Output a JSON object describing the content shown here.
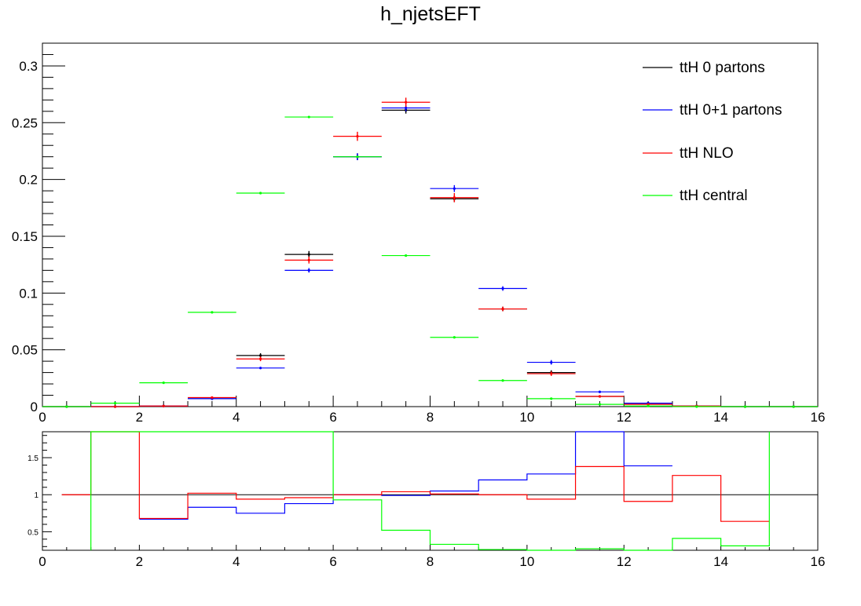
{
  "title": "h_njetsEFT",
  "chart_data": [
    {
      "type": "line",
      "subtype": "histogram-points",
      "x_bin_width": 1,
      "xlim": [
        0,
        16
      ],
      "ylim": [
        0,
        0.32
      ],
      "x_ticks": [
        "0",
        "2",
        "4",
        "6",
        "8",
        "10",
        "12",
        "14",
        "16"
      ],
      "y_ticks": [
        {
          "value": 0,
          "label": "0"
        },
        {
          "value": 0.05,
          "label": "0.05"
        },
        {
          "value": 0.1,
          "label": "0.1"
        },
        {
          "value": 0.15,
          "label": "0.15"
        },
        {
          "value": 0.2,
          "label": "0.2"
        },
        {
          "value": 0.25,
          "label": "0.25"
        },
        {
          "value": 0.3,
          "label": "0.3"
        }
      ],
      "legend_position": "top-right",
      "series": [
        {
          "name": "ttH 0 partons",
          "color": "#000000",
          "x": [
            0.5,
            1.5,
            2.5,
            3.5,
            4.5,
            5.5,
            6.5,
            7.5,
            8.5,
            9.5,
            10.5,
            11.5,
            12.5,
            13.5,
            14.5,
            15.5
          ],
          "values": [
            0,
            0,
            0.0005,
            0.007,
            0.045,
            0.134,
            0.22,
            0.261,
            0.183,
            0.086,
            0.03,
            0.009,
            0.003,
            0.0005,
            0,
            0
          ],
          "errors": [
            0,
            0,
            0.0005,
            0.001,
            0.002,
            0.003,
            0.003,
            0.003,
            0.003,
            0.002,
            0.002,
            0.001,
            0.001,
            0,
            0,
            0
          ]
        },
        {
          "name": "ttH 0+1 partons",
          "color": "#0000ff",
          "x": [
            0.5,
            1.5,
            2.5,
            3.5,
            4.5,
            5.5,
            6.5,
            7.5,
            8.5,
            9.5,
            10.5,
            11.5,
            12.5,
            13.5,
            14.5,
            15.5
          ],
          "values": [
            0,
            0,
            0.0005,
            0.007,
            0.034,
            0.12,
            0.22,
            0.263,
            0.192,
            0.104,
            0.039,
            0.013,
            0.003,
            0.0005,
            0,
            0
          ],
          "errors": [
            0,
            0,
            0.0005,
            0.001,
            0.001,
            0.002,
            0.003,
            0.003,
            0.003,
            0.002,
            0.002,
            0.001,
            0.001,
            0,
            0,
            0
          ]
        },
        {
          "name": "ttH NLO",
          "color": "#ff0000",
          "x": [
            0.5,
            1.5,
            2.5,
            3.5,
            4.5,
            5.5,
            6.5,
            7.5,
            8.5,
            9.5,
            10.5,
            11.5,
            12.5,
            13.5,
            14.5,
            15.5
          ],
          "values": [
            0,
            0,
            0.0005,
            0.008,
            0.042,
            0.129,
            0.238,
            0.268,
            0.184,
            0.086,
            0.029,
            0.009,
            0.002,
            0.0005,
            0,
            0
          ],
          "errors": [
            0,
            0,
            0.0005,
            0.001,
            0.002,
            0.003,
            0.004,
            0.004,
            0.004,
            0.002,
            0.002,
            0.001,
            0.001,
            0,
            0,
            0
          ]
        },
        {
          "name": "ttH central",
          "color": "#00ff00",
          "x": [
            0.5,
            1.5,
            2.5,
            3.5,
            4.5,
            5.5,
            6.5,
            7.5,
            8.5,
            9.5,
            10.5,
            11.5,
            12.5,
            13.5,
            14.5,
            15.5
          ],
          "values": [
            0,
            0.003,
            0.021,
            0.083,
            0.188,
            0.255,
            0.22,
            0.133,
            0.061,
            0.023,
            0.007,
            0.002,
            0.0005,
            0,
            0,
            0
          ],
          "errors": [
            0,
            0,
            0,
            0,
            0,
            0,
            0,
            0,
            0,
            0,
            0,
            0,
            0,
            0,
            0,
            0
          ]
        }
      ]
    },
    {
      "type": "line",
      "subtype": "ratio-step",
      "xlim": [
        0,
        16
      ],
      "ylim": [
        0.25,
        1.85
      ],
      "x_ticks": [
        "0",
        "2",
        "4",
        "6",
        "8",
        "10",
        "12",
        "14",
        "16"
      ],
      "y_ticks": [
        {
          "value": 0.5,
          "label": "0.5"
        },
        {
          "value": 1,
          "label": "1"
        },
        {
          "value": 1.5,
          "label": "1.5"
        }
      ],
      "reference": {
        "value": 1,
        "color": "#000000",
        "x_range": [
          0.4,
          16
        ]
      },
      "series": [
        {
          "name": "ttH 0+1 partons",
          "color": "#0000ff",
          "edges": [
            2,
            3,
            4,
            5,
            6,
            7,
            8,
            9,
            10,
            11,
            12,
            13
          ],
          "values": [
            0.67,
            0.83,
            0.75,
            0.88,
            1.0,
            0.99,
            1.05,
            1.2,
            1.28,
            1.85,
            1.39
          ]
        },
        {
          "name": "ttH NLO",
          "color": "#ff0000",
          "edges": [
            0.4,
            1,
            2,
            3,
            4,
            5,
            6,
            7,
            8,
            9,
            10,
            11,
            12,
            13,
            14,
            15
          ],
          "values": [
            1.0,
            1.85,
            0.68,
            1.02,
            0.94,
            0.96,
            1.0,
            1.04,
            1.01,
            1.0,
            0.94,
            1.38,
            0.91,
            1.26,
            0.64
          ]
        },
        {
          "name": "ttH central",
          "color": "#00ff00",
          "edges": [
            1,
            2,
            3,
            4,
            5,
            6,
            7,
            8,
            9,
            10,
            11,
            12,
            13,
            14,
            15
          ],
          "values": [
            1.85,
            1.85,
            1.85,
            1.85,
            1.85,
            0.93,
            0.52,
            0.33,
            0.26,
            0.25,
            0.27,
            0.25,
            0.41,
            0.31
          ],
          "lead_in": {
            "x": 1,
            "from": 0.25
          },
          "tail": {
            "x": 15,
            "to": 1.85
          }
        }
      ]
    }
  ]
}
